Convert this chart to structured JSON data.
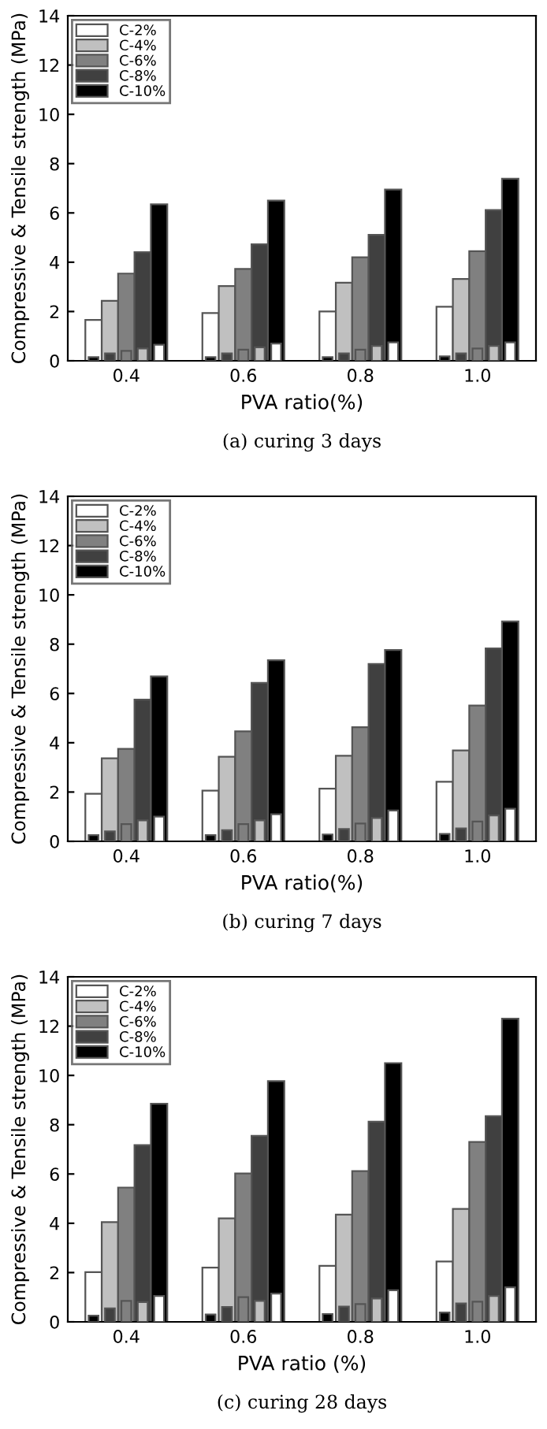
{
  "chart_data": [
    {
      "type": "bar",
      "categories": [
        "0.4",
        "0.6",
        "0.8",
        "1.0"
      ],
      "xlabel": "PVA ratio(%)",
      "ylabel": "Compressive & Tensile strength (MPa)",
      "ylim": [
        0,
        14
      ],
      "yticks": [
        0,
        2,
        4,
        6,
        8,
        10,
        12,
        14
      ],
      "legend": "top left",
      "grid": false,
      "annotations": [
        "(a) curing 3 days"
      ],
      "series": [
        {
          "name": "C-2%",
          "color": "#ffffff",
          "values": [
            1.66,
            1.94,
            2.0,
            2.19
          ]
        },
        {
          "name": "C-4%",
          "color": "#c0c0c0",
          "values": [
            2.43,
            3.03,
            3.17,
            3.32
          ]
        },
        {
          "name": "C-6%",
          "color": "#808080",
          "values": [
            3.54,
            3.73,
            4.2,
            4.45
          ]
        },
        {
          "name": "C-8%",
          "color": "#404040",
          "values": [
            4.41,
            4.73,
            5.11,
            6.12
          ]
        },
        {
          "name": "C-10%",
          "color": "#000000",
          "values": [
            6.35,
            6.5,
            6.95,
            7.39
          ]
        },
        {
          "color": "#000000",
          "values": [
            0.15,
            0.15,
            0.15,
            0.18
          ]
        },
        {
          "color": "#404040",
          "values": [
            0.3,
            0.3,
            0.3,
            0.3
          ]
        },
        {
          "color": "#808080",
          "values": [
            0.4,
            0.45,
            0.45,
            0.5
          ]
        },
        {
          "color": "#c0c0c0",
          "values": [
            0.5,
            0.55,
            0.6,
            0.6
          ]
        },
        {
          "color": "#ffffff",
          "values": [
            0.65,
            0.7,
            0.75,
            0.75
          ]
        }
      ]
    },
    {
      "type": "bar",
      "categories": [
        "0.4",
        "0.6",
        "0.8",
        "1.0"
      ],
      "xlabel": "PVA ratio(%)",
      "ylabel": "Compressive & Tensile strength (MPa)",
      "ylim": [
        0,
        14
      ],
      "yticks": [
        0,
        2,
        4,
        6,
        8,
        10,
        12,
        14
      ],
      "legend": "top left",
      "grid": false,
      "annotations": [
        "(b) curing 7 days"
      ],
      "series": [
        {
          "name": "C-2%",
          "color": "#ffffff",
          "values": [
            1.93,
            2.06,
            2.14,
            2.42
          ]
        },
        {
          "name": "C-4%",
          "color": "#c0c0c0",
          "values": [
            3.37,
            3.43,
            3.47,
            3.69
          ]
        },
        {
          "name": "C-6%",
          "color": "#808080",
          "values": [
            3.75,
            4.46,
            4.63,
            5.51
          ]
        },
        {
          "name": "C-8%",
          "color": "#404040",
          "values": [
            5.75,
            6.43,
            7.2,
            7.83
          ]
        },
        {
          "name": "C-10%",
          "color": "#000000",
          "values": [
            6.69,
            7.35,
            7.76,
            8.92
          ]
        },
        {
          "color": "#000000",
          "values": [
            0.25,
            0.25,
            0.28,
            0.3
          ]
        },
        {
          "color": "#404040",
          "values": [
            0.4,
            0.45,
            0.5,
            0.52
          ]
        },
        {
          "color": "#808080",
          "values": [
            0.7,
            0.7,
            0.72,
            0.8
          ]
        },
        {
          "color": "#c0c0c0",
          "values": [
            0.85,
            0.85,
            0.95,
            1.05
          ]
        },
        {
          "color": "#ffffff",
          "values": [
            1.0,
            1.1,
            1.25,
            1.32
          ]
        }
      ]
    },
    {
      "type": "bar",
      "categories": [
        "0.4",
        "0.6",
        "0.8",
        "1.0"
      ],
      "xlabel": "PVA ratio (%)",
      "ylabel": "Compressive & Tensile strength (MPa)",
      "ylim": [
        0,
        14
      ],
      "yticks": [
        0,
        2,
        4,
        6,
        8,
        10,
        12,
        14
      ],
      "legend": "top left",
      "grid": false,
      "annotations": [
        "(c) curing 28 days"
      ],
      "series": [
        {
          "name": "C-2%",
          "color": "#ffffff",
          "values": [
            2.02,
            2.2,
            2.27,
            2.45
          ]
        },
        {
          "name": "C-4%",
          "color": "#c0c0c0",
          "values": [
            4.05,
            4.2,
            4.35,
            4.58
          ]
        },
        {
          "name": "C-6%",
          "color": "#808080",
          "values": [
            5.45,
            6.02,
            6.12,
            7.3
          ]
        },
        {
          "name": "C-8%",
          "color": "#404040",
          "values": [
            7.17,
            7.55,
            8.12,
            8.35
          ]
        },
        {
          "name": "C-10%",
          "color": "#000000",
          "values": [
            8.85,
            9.77,
            10.5,
            12.3
          ]
        },
        {
          "color": "#000000",
          "values": [
            0.25,
            0.3,
            0.32,
            0.38
          ]
        },
        {
          "color": "#404040",
          "values": [
            0.55,
            0.6,
            0.62,
            0.75
          ]
        },
        {
          "color": "#808080",
          "values": [
            0.85,
            1.0,
            0.72,
            0.82
          ]
        },
        {
          "color": "#c0c0c0",
          "values": [
            0.8,
            0.85,
            0.95,
            1.05
          ]
        },
        {
          "color": "#ffffff",
          "values": [
            1.05,
            1.15,
            1.28,
            1.4
          ]
        }
      ]
    }
  ]
}
